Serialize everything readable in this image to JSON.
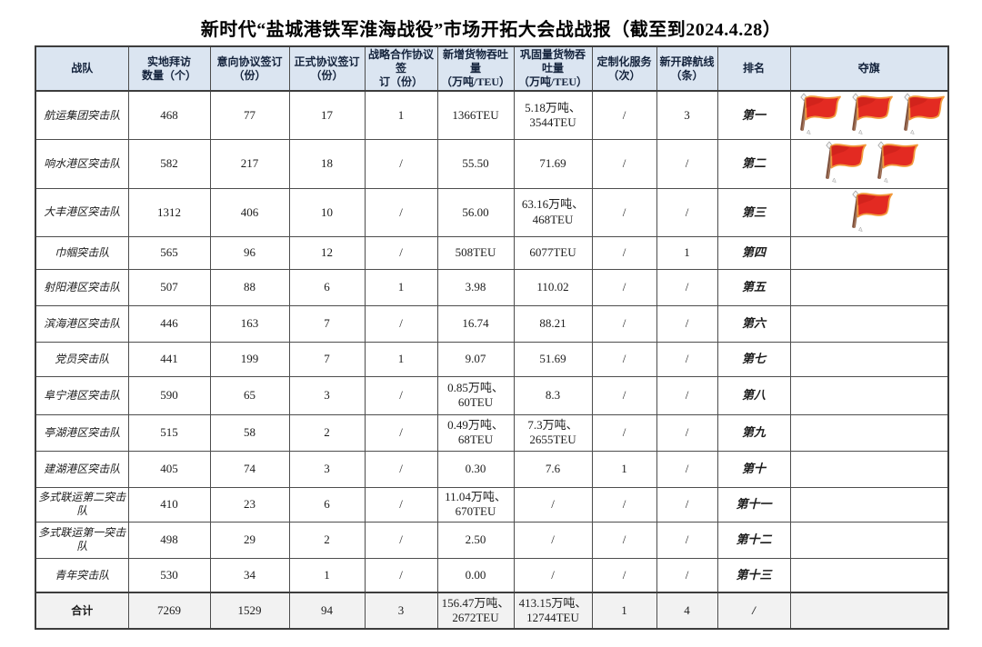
{
  "title": "新时代“盐城港铁军淮海战役”市场开拓大会战战报（截至到2024.4.28）",
  "icons": {
    "flag_icon_name": "red-flag-icon",
    "flag_color": "#e32a22",
    "flag_trim_color": "#f29a3d",
    "header_bg": "#dbe5f1",
    "total_row_bg": "#f2f2f2"
  },
  "table": {
    "headers": [
      "战队",
      "实地拜访\n数量（个）",
      "意向协议签订\n（份）",
      "正式协议签订\n（份）",
      "战略合作协议签\n订（份）",
      "新增货物吞吐量\n（万吨/TEU）",
      "巩固量货物吞吐量\n（万吨/TEU）",
      "定制化服务\n（次）",
      "新开辟航线\n（条）",
      "排名",
      "夺旗"
    ],
    "rows": [
      {
        "cells": [
          "航运集团突击队",
          "468",
          "77",
          "17",
          "1",
          "1366TEU",
          "5.18万吨、\n3544TEU",
          "/",
          "3",
          "第一"
        ],
        "flags": 3
      },
      {
        "cells": [
          "响水港区突击队",
          "582",
          "217",
          "18",
          "/",
          "55.50",
          "71.69",
          "/",
          "/",
          "第二"
        ],
        "flags": 2
      },
      {
        "cells": [
          "大丰港区突击队",
          "1312",
          "406",
          "10",
          "/",
          "56.00",
          "63.16万吨、\n468TEU",
          "/",
          "/",
          "第三"
        ],
        "flags": 1
      },
      {
        "cells": [
          "巾帼突击队",
          "565",
          "96",
          "12",
          "/",
          "508TEU",
          "6077TEU",
          "/",
          "1",
          "第四"
        ],
        "flags": 0
      },
      {
        "cells": [
          "射阳港区突击队",
          "507",
          "88",
          "6",
          "1",
          "3.98",
          "110.02",
          "/",
          "/",
          "第五"
        ],
        "flags": 0
      },
      {
        "cells": [
          "滨海港区突击队",
          "446",
          "163",
          "7",
          "/",
          "16.74",
          "88.21",
          "/",
          "/",
          "第六"
        ],
        "flags": 0
      },
      {
        "cells": [
          "党员突击队",
          "441",
          "199",
          "7",
          "1",
          "9.07",
          "51.69",
          "/",
          "/",
          "第七"
        ],
        "flags": 0
      },
      {
        "cells": [
          "阜宁港区突击队",
          "590",
          "65",
          "3",
          "/",
          "0.85万吨、\n60TEU",
          "8.3",
          "/",
          "/",
          "第八"
        ],
        "flags": 0
      },
      {
        "cells": [
          "亭湖港区突击队",
          "515",
          "58",
          "2",
          "/",
          "0.49万吨、\n68TEU",
          "7.3万吨、\n2655TEU",
          "/",
          "/",
          "第九"
        ],
        "flags": 0
      },
      {
        "cells": [
          "建湖港区突击队",
          "405",
          "74",
          "3",
          "/",
          "0.30",
          "7.6",
          "1",
          "/",
          "第十"
        ],
        "flags": 0
      },
      {
        "cells": [
          "多式联运第二突击队",
          "410",
          "23",
          "6",
          "/",
          "11.04万吨、\n670TEU",
          "/",
          "/",
          "/",
          "第十一"
        ],
        "flags": 0
      },
      {
        "cells": [
          "多式联运第一突击队",
          "498",
          "29",
          "2",
          "/",
          "2.50",
          "/",
          "/",
          "/",
          "第十二"
        ],
        "flags": 0
      },
      {
        "cells": [
          "青年突击队",
          "530",
          "34",
          "1",
          "/",
          "0.00",
          "/",
          "/",
          "/",
          "第十三"
        ],
        "flags": 0
      }
    ],
    "total": {
      "cells": [
        "合计",
        "7269",
        "1529",
        "94",
        "3",
        "156.47万吨、\n2672TEU",
        "413.15万吨、\n12744TEU",
        "1",
        "4",
        "/"
      ],
      "flags": 0
    }
  }
}
